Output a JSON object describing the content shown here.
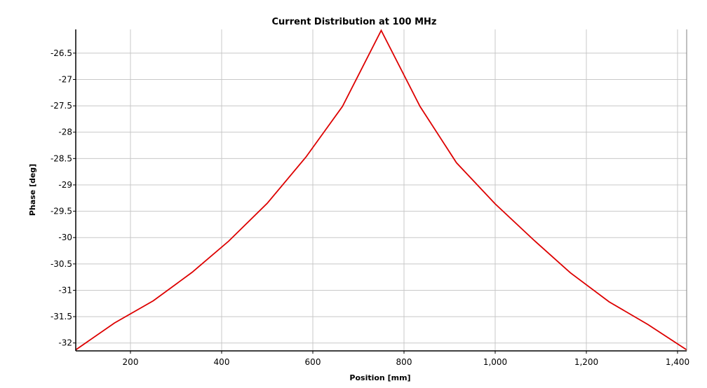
{
  "chart_data": {
    "type": "line",
    "title": "Current Distribution at 100 MHz",
    "xlabel": "Position [mm]",
    "ylabel": "Phase [deg]",
    "xlim": [
      80,
      1420
    ],
    "ylim": [
      -32.15,
      -26.05
    ],
    "grid": true,
    "x_ticks": [
      {
        "value": 200,
        "label": "200"
      },
      {
        "value": 400,
        "label": "400"
      },
      {
        "value": 600,
        "label": "600"
      },
      {
        "value": 800,
        "label": "800"
      },
      {
        "value": 1000,
        "label": "1,000"
      },
      {
        "value": 1200,
        "label": "1,200"
      },
      {
        "value": 1400,
        "label": "1,400"
      }
    ],
    "y_ticks": [
      {
        "value": -26.5,
        "label": "-26.5"
      },
      {
        "value": -27,
        "label": "-27"
      },
      {
        "value": -27.5,
        "label": "-27.5"
      },
      {
        "value": -28,
        "label": "-28"
      },
      {
        "value": -28.5,
        "label": "-28.5"
      },
      {
        "value": -29,
        "label": "-29"
      },
      {
        "value": -29.5,
        "label": "-29.5"
      },
      {
        "value": -30,
        "label": "-30"
      },
      {
        "value": -30.5,
        "label": "-30.5"
      },
      {
        "value": -31,
        "label": "-31"
      },
      {
        "value": -31.5,
        "label": "-31.5"
      },
      {
        "value": -32,
        "label": "-32"
      }
    ],
    "series": [
      {
        "color": "#dd0000",
        "x": [
          80,
          165,
          250,
          335,
          415,
          500,
          585,
          665,
          750,
          835,
          915,
          1000,
          1085,
          1165,
          1250,
          1335,
          1420
        ],
        "y": [
          -32.13,
          -31.62,
          -31.2,
          -30.66,
          -30.07,
          -29.35,
          -28.47,
          -27.51,
          -26.07,
          -27.51,
          -28.58,
          -29.36,
          -30.05,
          -30.67,
          -31.22,
          -31.65,
          -32.13
        ]
      }
    ]
  }
}
